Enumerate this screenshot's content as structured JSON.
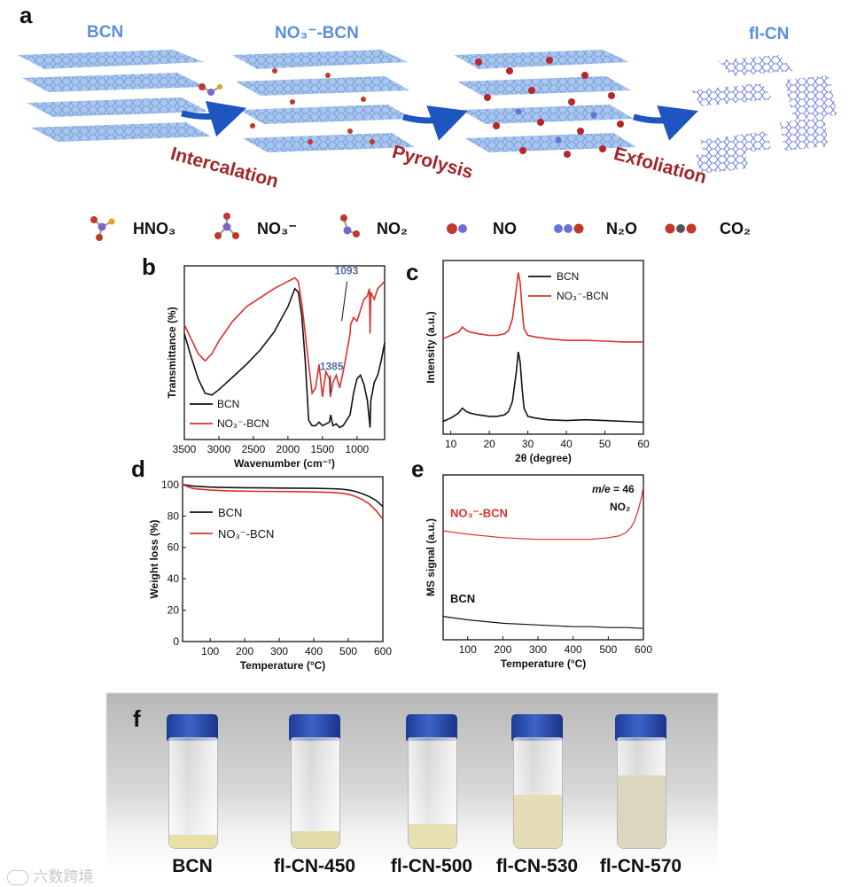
{
  "panel_a": {
    "label": "a",
    "stages": [
      "BCN",
      "NO₃⁻-BCN",
      "fl-CN"
    ],
    "steps": [
      "Intercalation",
      "Pyrolysis",
      "Exfoliation"
    ],
    "legend": [
      "HNO₃",
      "NO₃⁻",
      "NO₂",
      "NO",
      "N₂O",
      "CO₂"
    ]
  },
  "colors": {
    "black": "#111111",
    "red": "#d9302b",
    "blue_text": "#5b8fd6",
    "annot": "#4f6fa0",
    "step": "#a0262a"
  },
  "chart_data": [
    {
      "panel": "b",
      "type": "line",
      "xlabel": "Wavenumber (cm⁻¹)",
      "ylabel": "Transmittance (%)",
      "xlim": [
        3500,
        600
      ],
      "xticks": [
        3500,
        3000,
        2500,
        2000,
        1500,
        1000
      ],
      "annotations": [
        "1385",
        "1093"
      ],
      "legend_position": "bottom-left",
      "series": [
        {
          "name": "BCN",
          "color": "#111111",
          "x": [
            3500,
            3400,
            3300,
            3200,
            3100,
            3000,
            2800,
            2600,
            2400,
            2200,
            2000,
            1900,
            1850,
            1800,
            1750,
            1700,
            1650,
            1600,
            1550,
            1500,
            1450,
            1400,
            1380,
            1350,
            1300,
            1250,
            1200,
            1150,
            1100,
            1050,
            1000,
            950,
            900,
            850,
            810,
            800,
            780,
            750,
            700,
            650,
            600
          ],
          "y": [
            55,
            42,
            30,
            22,
            21,
            24,
            31,
            38,
            46,
            56,
            70,
            80,
            78,
            65,
            40,
            7,
            4,
            4,
            6,
            4,
            5,
            6,
            10,
            4,
            5,
            3,
            4,
            7,
            10,
            22,
            30,
            32,
            27,
            18,
            3,
            18,
            22,
            28,
            32,
            40,
            50
          ]
        },
        {
          "name": "NO₃⁻-BCN",
          "color": "#d9302b",
          "x": [
            3500,
            3400,
            3300,
            3200,
            3100,
            3000,
            2800,
            2600,
            2400,
            2200,
            2000,
            1900,
            1850,
            1800,
            1750,
            1700,
            1650,
            1600,
            1550,
            1500,
            1450,
            1400,
            1385,
            1350,
            1300,
            1250,
            1200,
            1150,
            1100,
            1093,
            1050,
            1000,
            950,
            900,
            850,
            820,
            810,
            800,
            750,
            700,
            650,
            600
          ],
          "y": [
            60,
            52,
            44,
            40,
            44,
            51,
            62,
            70,
            75,
            80,
            84,
            86,
            84,
            72,
            55,
            38,
            22,
            25,
            38,
            20,
            34,
            30,
            20,
            28,
            32,
            25,
            34,
            44,
            55,
            60,
            64,
            62,
            68,
            74,
            76,
            80,
            55,
            78,
            74,
            80,
            82,
            84
          ]
        }
      ]
    },
    {
      "panel": "c",
      "type": "line",
      "xlabel": "2θ (degree)",
      "ylabel": "Intensity (a.u.)",
      "xlim": [
        8,
        60
      ],
      "xticks": [
        10,
        20,
        30,
        40,
        50,
        60
      ],
      "legend_position": "top-right",
      "series": [
        {
          "name": "BCN",
          "color": "#111111",
          "x": [
            8,
            10,
            12,
            13,
            14,
            15,
            17,
            20,
            22,
            24,
            25,
            26,
            27,
            27.5,
            28,
            28.5,
            29,
            30,
            32,
            35,
            40,
            45,
            50,
            55,
            60
          ],
          "y": [
            10,
            12,
            15,
            18,
            16,
            15,
            14,
            13,
            13,
            14,
            16,
            22,
            40,
            52,
            46,
            30,
            18,
            13,
            12,
            11,
            10.5,
            11,
            10.5,
            10,
            9.5
          ]
        },
        {
          "name": "NO₃⁻-BCN",
          "color": "#d9302b",
          "x": [
            8,
            10,
            12,
            13,
            14,
            15,
            17,
            20,
            22,
            24,
            25,
            26,
            27,
            27.5,
            28,
            28.5,
            29,
            30,
            32,
            35,
            40,
            45,
            50,
            55,
            60
          ],
          "y": [
            60,
            62,
            64,
            67,
            65,
            64,
            63,
            62,
            62,
            63,
            65,
            72,
            90,
            100,
            94,
            78,
            66,
            62,
            61,
            60,
            59,
            59,
            58.5,
            58,
            58
          ]
        }
      ]
    },
    {
      "panel": "d",
      "type": "line",
      "xlabel": "Temperature (°C)",
      "ylabel": "Weight loss (%)",
      "xlim": [
        20,
        600
      ],
      "ylim": [
        0,
        105
      ],
      "xticks": [
        100,
        200,
        300,
        400,
        500,
        600
      ],
      "yticks": [
        0,
        20,
        40,
        60,
        80,
        100
      ],
      "legend_position": "upper-left",
      "series": [
        {
          "name": "BCN",
          "color": "#111111",
          "x": [
            20,
            50,
            100,
            150,
            200,
            250,
            300,
            350,
            400,
            450,
            480,
            500,
            520,
            540,
            560,
            580,
            600
          ],
          "y": [
            100,
            99,
            98.4,
            98.1,
            98,
            97.9,
            97.8,
            97.7,
            97.6,
            97.4,
            97.1,
            96.6,
            95.7,
            94.3,
            92.4,
            90,
            86
          ]
        },
        {
          "name": "NO₃⁻-BCN",
          "color": "#d9302b",
          "x": [
            20,
            50,
            100,
            150,
            200,
            250,
            300,
            350,
            400,
            450,
            480,
            500,
            520,
            540,
            560,
            580,
            600
          ],
          "y": [
            100,
            97.5,
            96.5,
            96,
            95.8,
            95.7,
            95.6,
            95.5,
            95.3,
            95,
            94.5,
            93.8,
            92.5,
            90.5,
            87.8,
            83.5,
            78
          ]
        }
      ]
    },
    {
      "panel": "e",
      "type": "line",
      "xlabel": "Temperature (°C)",
      "ylabel": "MS signal (a.u.)",
      "xlim": [
        30,
        600
      ],
      "xticks": [
        100,
        200,
        300,
        400,
        500,
        600
      ],
      "annotation_italic": "m/e",
      "annotation_value": " = 46",
      "annotation_species": "NO₂",
      "series": [
        {
          "name": "NO₃⁻-BCN",
          "color": "#d9302b",
          "x": [
            30,
            100,
            200,
            300,
            400,
            450,
            500,
            530,
            550,
            565,
            575,
            585,
            595,
            600
          ],
          "y": [
            66,
            64,
            62,
            61,
            61,
            61,
            62,
            63,
            65,
            68,
            72,
            78,
            86,
            92
          ]
        },
        {
          "name": "BCN",
          "color": "#111111",
          "x": [
            30,
            100,
            200,
            300,
            400,
            450,
            500,
            550,
            600
          ],
          "y": [
            16,
            14,
            12,
            11,
            10,
            10,
            9.5,
            9.5,
            9
          ]
        }
      ]
    }
  ],
  "panel_f": {
    "label": "f",
    "vials": [
      "BCN",
      "fl-CN-450",
      "fl-CN-500",
      "fl-CN-530",
      "fl-CN-570"
    ],
    "fill_levels": [
      0.12,
      0.15,
      0.22,
      0.48,
      0.66
    ],
    "powder_colors": [
      "#e9e0a6",
      "#e2dba8",
      "#e7e0b2",
      "#e4ddb7",
      "#dcd6bf"
    ]
  },
  "watermark": "六数跨境"
}
